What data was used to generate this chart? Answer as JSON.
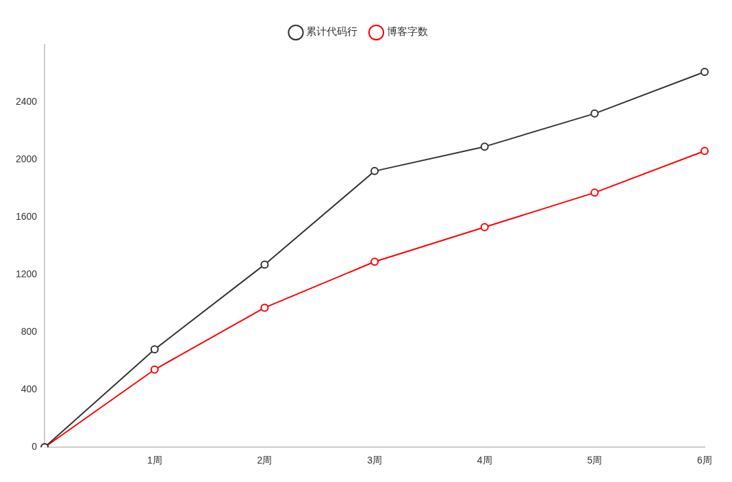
{
  "chart_data": {
    "type": "line",
    "categories": [
      null,
      "1周",
      "2周",
      "3周",
      "4周",
      "5周",
      "6周"
    ],
    "series": [
      {
        "name": "累计代码行",
        "color": "#333333",
        "values": [
          0,
          680,
          1270,
          1920,
          2090,
          2320,
          2610
        ]
      },
      {
        "name": "博客字数",
        "color": "#ff0000",
        "values": [
          0,
          540,
          970,
          1290,
          1530,
          1770,
          2060
        ]
      }
    ],
    "ylim": [
      0,
      2800
    ],
    "yticks": [
      0,
      400,
      800,
      1200,
      1600,
      2000,
      2400
    ],
    "grid": false,
    "legend": "top",
    "marker": "circle",
    "line_style": "solid"
  }
}
